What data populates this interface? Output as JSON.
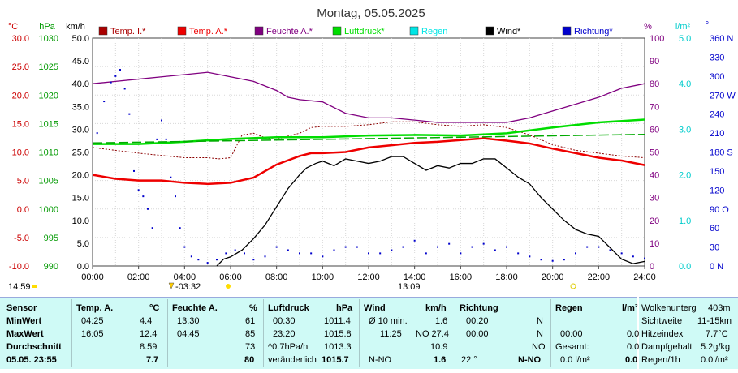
{
  "chart_data": {
    "type": "line",
    "title": "Montag, 05.05.2025",
    "x_ticks": [
      "00:00",
      "02:00",
      "04:00",
      "06:00",
      "08:00",
      "10:00",
      "12:00",
      "14:00",
      "16:00",
      "18:00",
      "20:00",
      "22:00",
      "24:00"
    ],
    "xlim_hours": [
      0,
      24
    ],
    "grid": true,
    "legend_position": "top",
    "axes": {
      "temp": {
        "unit": "°C",
        "ticks": [
          "30.0",
          "25.0",
          "20.0",
          "15.0",
          "10.0",
          "5.0",
          "0.0",
          "-5.0",
          "-10.0"
        ],
        "range": [
          -10,
          30
        ],
        "color": "#cc0000"
      },
      "pressure": {
        "unit": "hPa",
        "ticks": [
          "1030",
          "1025",
          "1020",
          "1015",
          "1010",
          "1005",
          "1000",
          "995",
          "990"
        ],
        "range": [
          990,
          1030
        ],
        "color": "#009900"
      },
      "wind": {
        "unit": "km/h",
        "ticks": [
          "50.0",
          "45.0",
          "40.0",
          "35.0",
          "30.0",
          "25.0",
          "20.0",
          "15.0",
          "10.0",
          "5.0",
          "0.0"
        ],
        "range": [
          0,
          50
        ],
        "color": "#000000"
      },
      "humidity": {
        "unit": "%",
        "ticks": [
          "100",
          "90",
          "80",
          "70",
          "60",
          "50",
          "40",
          "30",
          "20",
          "10",
          "0"
        ],
        "range": [
          0,
          100
        ],
        "color": "#800080"
      },
      "rain": {
        "unit": "l/m²",
        "ticks": [
          "5.0",
          "4.0",
          "3.0",
          "2.0",
          "1.0",
          "0.0"
        ],
        "range": [
          0,
          5
        ],
        "color": "#00cccc"
      },
      "direction": {
        "unit": "°",
        "ticks": [
          "360 N",
          "330",
          "300",
          "270 W",
          "240",
          "210",
          "180 S",
          "150",
          "120",
          "90 O",
          "60",
          "30",
          "0 N"
        ],
        "range": [
          0,
          360
        ],
        "color": "#0000cc"
      }
    },
    "series": [
      {
        "name": "Temp. I.*",
        "color": "#8b0000",
        "style": "dotted",
        "axis": "temp",
        "x": [
          0,
          1,
          2,
          3,
          4,
          5,
          5.5,
          6,
          6.5,
          7,
          7.5,
          8,
          8.5,
          9,
          9.5,
          10,
          11,
          12,
          13,
          14,
          15,
          16,
          17,
          18,
          19,
          20,
          21,
          22,
          23,
          24
        ],
        "y": [
          10.8,
          10.3,
          9.8,
          9.4,
          9.0,
          9.0,
          8.8,
          9.0,
          13.0,
          13.3,
          12.5,
          12.2,
          12.8,
          13.3,
          14.3,
          14.5,
          14.5,
          14.8,
          15.3,
          15.3,
          14.8,
          14.5,
          14.8,
          14.3,
          13.0,
          11.3,
          10.3,
          9.8,
          9.3,
          9.0
        ]
      },
      {
        "name": "Temp. A.*",
        "color": "#ee0000",
        "style": "solid",
        "axis": "temp",
        "x": [
          0,
          1,
          2,
          3,
          4,
          5,
          6,
          7,
          8,
          9,
          9.5,
          10,
          11,
          12,
          13,
          14,
          15,
          16,
          17,
          18,
          19,
          20,
          21,
          22,
          23,
          24
        ],
        "y": [
          6.0,
          5.3,
          5.0,
          5.0,
          4.6,
          4.4,
          4.6,
          5.5,
          7.8,
          9.3,
          9.8,
          9.8,
          10.0,
          10.8,
          11.2,
          11.6,
          11.8,
          12.1,
          12.4,
          12.0,
          11.5,
          10.6,
          9.8,
          9.0,
          8.5,
          7.7
        ]
      },
      {
        "name": "Feuchte A.*",
        "color": "#800080",
        "style": "solid",
        "axis": "humidity",
        "x": [
          0,
          1,
          2,
          3,
          4,
          5,
          6,
          7,
          8,
          8.5,
          9,
          10,
          11,
          12,
          13,
          14,
          15,
          16,
          17,
          18,
          19,
          20,
          21,
          22,
          23,
          24
        ],
        "y": [
          80,
          81,
          82,
          83,
          84,
          85,
          83,
          81,
          77,
          74,
          73,
          72,
          67,
          65,
          65,
          64,
          63,
          63,
          63,
          63,
          65,
          68,
          71,
          74,
          78,
          80
        ]
      },
      {
        "name": "Luftdruck*",
        "color": "#00dd00",
        "style": "solid",
        "axis": "pressure",
        "x": [
          0,
          2,
          4,
          6,
          8,
          10,
          12,
          14,
          16,
          18,
          20,
          22,
          24
        ],
        "y": [
          1011.4,
          1011.4,
          1011.8,
          1012.3,
          1012.6,
          1012.6,
          1012.9,
          1013.0,
          1012.9,
          1013.3,
          1014.3,
          1015.2,
          1015.7
        ]
      },
      {
        "name": "Luftdruck-Trend",
        "color": "#00aa00",
        "style": "dashed",
        "axis": "pressure",
        "x": [
          0,
          24
        ],
        "y": [
          1011.6,
          1013.1
        ]
      },
      {
        "name": "Wind*",
        "color": "#000000",
        "style": "solid",
        "axis": "wind",
        "x": [
          5.4,
          5.7,
          6.0,
          6.5,
          7.0,
          7.5,
          8.0,
          8.5,
          9.0,
          9.3,
          9.7,
          10.0,
          10.5,
          11.0,
          11.5,
          12.0,
          12.5,
          13.0,
          13.5,
          14.0,
          14.5,
          15.0,
          15.5,
          16.0,
          16.5,
          17.0,
          17.5,
          18.0,
          18.5,
          19.0,
          19.5,
          20.0,
          20.5,
          21.0,
          21.5,
          22.0,
          22.5,
          23.0,
          23.5,
          24.0
        ],
        "y": [
          0,
          1.5,
          2.0,
          3.5,
          6.0,
          9.0,
          13.0,
          17.0,
          20.0,
          21.5,
          22.5,
          23.0,
          22.0,
          23.5,
          23.0,
          22.5,
          23.0,
          24.0,
          24.0,
          22.5,
          21.0,
          22.0,
          21.5,
          22.5,
          22.5,
          23.5,
          23.5,
          21.5,
          19.5,
          18.0,
          15.0,
          12.5,
          10.0,
          8.0,
          7.0,
          6.5,
          4.0,
          1.5,
          0.5,
          1.0
        ]
      },
      {
        "name": "Richtung*",
        "color": "#0000cc",
        "style": "dots",
        "axis": "direction",
        "x": [
          0.2,
          0.5,
          0.8,
          1.0,
          1.2,
          1.4,
          1.6,
          1.8,
          2.0,
          2.2,
          2.4,
          2.6,
          2.8,
          3.0,
          3.2,
          3.4,
          3.6,
          3.8,
          4.0,
          4.3,
          4.6,
          5.0,
          5.4,
          5.8,
          6.2,
          6.6,
          7.0,
          7.5,
          8.0,
          8.5,
          9.0,
          9.5,
          10.0,
          10.5,
          11.0,
          11.5,
          12.0,
          12.5,
          13.0,
          13.5,
          14.0,
          14.5,
          15.0,
          15.5,
          16.0,
          16.5,
          17.0,
          17.5,
          18.0,
          18.5,
          19.0,
          19.5,
          20.0,
          20.5,
          21.0,
          21.5,
          22.0,
          22.5,
          23.0,
          23.5,
          24.0
        ],
        "y": [
          210,
          260,
          290,
          300,
          310,
          280,
          240,
          150,
          120,
          110,
          90,
          60,
          200,
          230,
          200,
          140,
          110,
          60,
          30,
          15,
          10,
          5,
          10,
          20,
          25,
          20,
          10,
          15,
          30,
          25,
          20,
          20,
          15,
          25,
          30,
          30,
          20,
          20,
          25,
          30,
          40,
          20,
          30,
          35,
          20,
          30,
          35,
          25,
          30,
          20,
          15,
          10,
          8,
          10,
          20,
          30,
          30,
          25,
          20,
          15,
          12
        ]
      }
    ]
  },
  "legend": [
    {
      "label": "Temp. I.*",
      "color": "#aa0000"
    },
    {
      "label": "Temp. A.*",
      "color": "#ee0000"
    },
    {
      "label": "Feuchte A.*",
      "color": "#800080"
    },
    {
      "label": "Luftdruck*",
      "color": "#00dd00"
    },
    {
      "label": "Regen",
      "color": "#00e5e5"
    },
    {
      "label": "Wind*",
      "color": "#000000"
    },
    {
      "label": "Richtung*",
      "color": "#0000cc"
    }
  ],
  "sun_markers": {
    "moon_rise": "14:59",
    "sunrise": "-03:32",
    "solar_noon": "13:09"
  },
  "table": {
    "sensor_col": {
      "header": "Sensor",
      "min": "MinWert",
      "max": "MaxWert",
      "avg": "Durchschnitt",
      "now": "05.05. 23:55"
    },
    "temp": {
      "header": "Temp. A.",
      "unit": "°C",
      "min_time": "04:25",
      "min": "4.4",
      "max_time": "16:05",
      "max": "12.4",
      "avg": "8.59",
      "now": "7.7"
    },
    "humidity": {
      "header": "Feuchte A.",
      "unit": "%",
      "min_time": "13:30",
      "min": "61",
      "max_time": "04:45",
      "max": "85",
      "avg": "73",
      "now": "80"
    },
    "pressure": {
      "header": "Luftdruck",
      "unit": "hPa",
      "min_time": "00:30",
      "min": "1011.4",
      "max_time": "23:20",
      "max": "1015.8",
      "avg_label": "^0.7hPa/h",
      "avg": "1013.3",
      "now_label": "veränderlich",
      "now": "1015.7"
    },
    "wind": {
      "header": "Wind",
      "unit": "km/h",
      "min_time": "Ø 10 min.",
      "min": "1.6",
      "max_time": "11:25",
      "max": "NO 27.4",
      "avg": "10.9",
      "now_label": "N-NO",
      "now": "1.6"
    },
    "direction": {
      "header": "Richtung",
      "min_time": "00:20",
      "min": "N",
      "max_time": "00:00",
      "max": "N",
      "avg": "NO",
      "now_label": "22 °",
      "now": "N-NO"
    },
    "rain": {
      "header": "Regen",
      "unit": "l/m²",
      "max_time": "00:00",
      "max": "0.0",
      "avg_label": "Gesamt:",
      "avg": "0.0",
      "now_label": "0.0 l/m²",
      "now": "0.0"
    },
    "extra": [
      {
        "label": "Wolkenunterg",
        "value": "403m"
      },
      {
        "label": "Sichtweite",
        "value": "11-15km"
      },
      {
        "label": "Hitzeindex",
        "value": "7.7°C"
      },
      {
        "label": "Dampfgehalt",
        "value": "5.2g/kg"
      },
      {
        "label": "Regen/1h",
        "value": "0.0l/m²"
      }
    ]
  }
}
